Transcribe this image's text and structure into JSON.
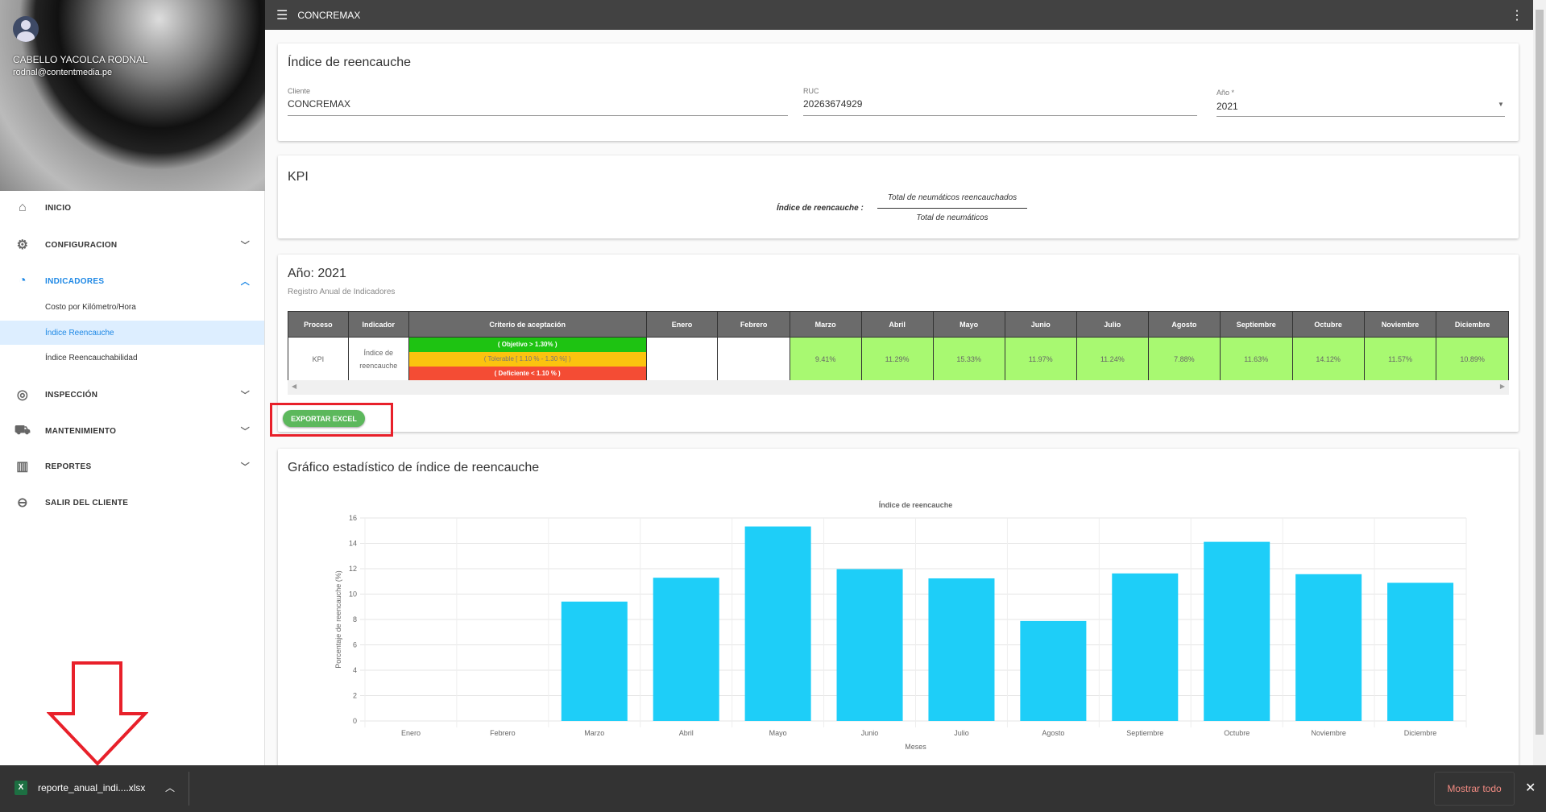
{
  "topbar": {
    "title": "CONCREMAX",
    "menu_icon": "hamburger-icon",
    "more_icon": "more-vert-icon"
  },
  "user": {
    "name": "CABELLO YACOLCA RODNAL",
    "email": "rodnal@contentmedia.pe"
  },
  "sidebar": {
    "items": [
      {
        "label": "INICIO",
        "icon": "home-icon"
      },
      {
        "label": "CONFIGURACION",
        "icon": "gear-icon"
      },
      {
        "label": "INDICADORES",
        "icon": "speedometer-icon",
        "expanded": true
      },
      {
        "label": "INSPECCIÓN",
        "icon": "inspection-icon"
      },
      {
        "label": "MANTENIMIENTO",
        "icon": "maintenance-icon"
      },
      {
        "label": "REPORTES",
        "icon": "bar-chart-icon"
      },
      {
        "label": "SALIR DEL CLIENTE",
        "icon": "exit-icon"
      }
    ],
    "subitems": [
      "Costo por Kilómetro/Hora",
      "Índice Reencauche",
      "Índice Reencauchabilidad"
    ],
    "selected": "Índice Reencauche"
  },
  "form": {
    "title": "Índice de reencauche",
    "cliente_label": "Cliente",
    "cliente": "CONCREMAX",
    "ruc_label": "RUC",
    "ruc": "20263674929",
    "anio_label": "Año *",
    "anio": "2021"
  },
  "kpi": {
    "title": "KPI",
    "label": "Índice de reencauche :",
    "numerator": "Total de neumáticos reencauchados",
    "denominator": "Total de neumáticos"
  },
  "registro": {
    "title": "Año: 2021",
    "subtitle": "Registro Anual de Indicadores",
    "headers": [
      "Proceso",
      "Indicador",
      "Criterio de aceptación",
      "Enero",
      "Febrero",
      "Marzo",
      "Abril",
      "Mayo",
      "Junio",
      "Julio",
      "Agosto",
      "Septiembre",
      "Octubre",
      "Noviembre",
      "Diciembre"
    ],
    "proceso": "KPI",
    "indicador": "Índice de reencauche",
    "criterios": [
      {
        "text": "( Objetivo > 1.30% )",
        "color": "#1ec312"
      },
      {
        "text": "( Tolerable [ 1.10 % - 1.30 %] )",
        "color": "#fbc30f"
      },
      {
        "text": "( Deficiente < 1.10 % )",
        "color": "#f44c34"
      }
    ],
    "values": [
      "",
      "",
      "9.41%",
      "11.29%",
      "15.33%",
      "11.97%",
      "11.24%",
      "7.88%",
      "11.63%",
      "14.12%",
      "11.57%",
      "10.89%"
    ],
    "export_label": "EXPORTAR EXCEL"
  },
  "chart_section_title": "Gráfico estadístico de índice de reencauche",
  "chart_data": {
    "type": "bar",
    "title": "Índice de reencauche",
    "xlabel": "Meses",
    "ylabel": "Porcentaje de reencauche (%)",
    "categories": [
      "Enero",
      "Febrero",
      "Marzo",
      "Abril",
      "Mayo",
      "Junio",
      "Julio",
      "Agosto",
      "Septiembre",
      "Octubre",
      "Noviembre",
      "Diciembre"
    ],
    "values": [
      0,
      0,
      9.41,
      11.29,
      15.33,
      11.97,
      11.24,
      7.88,
      11.63,
      14.12,
      11.57,
      10.89
    ],
    "ylim": [
      0,
      16
    ],
    "yticks": [
      0,
      2,
      4,
      6,
      8,
      10,
      12,
      14,
      16
    ],
    "grid": true,
    "color": "#1ecef8"
  },
  "download": {
    "filename": "reporte_anual_indi....xlsx",
    "show_all": "Mostrar todo",
    "file_icon": "excel-icon"
  }
}
